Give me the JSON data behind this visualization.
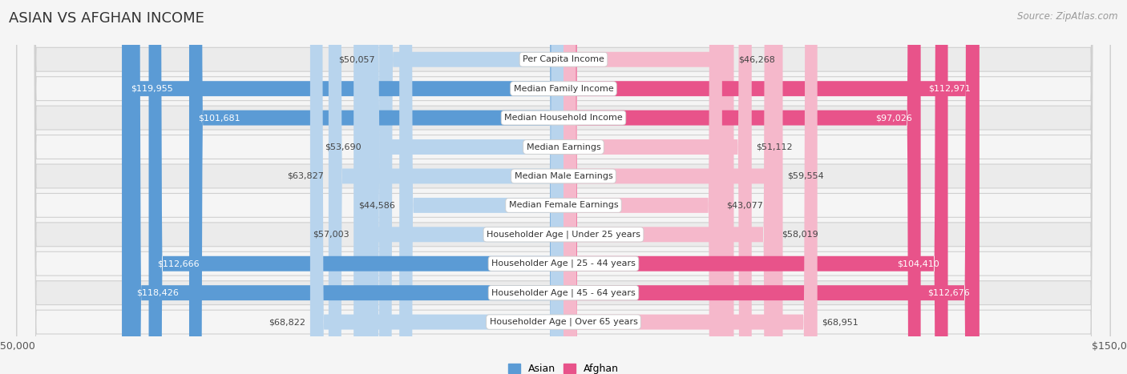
{
  "title": "ASIAN VS AFGHAN INCOME",
  "source": "Source: ZipAtlas.com",
  "categories": [
    "Per Capita Income",
    "Median Family Income",
    "Median Household Income",
    "Median Earnings",
    "Median Male Earnings",
    "Median Female Earnings",
    "Householder Age | Under 25 years",
    "Householder Age | 25 - 44 years",
    "Householder Age | 45 - 64 years",
    "Householder Age | Over 65 years"
  ],
  "asian_values": [
    50057,
    119955,
    101681,
    53690,
    63827,
    44586,
    57003,
    112666,
    118426,
    68822
  ],
  "afghan_values": [
    46268,
    112971,
    97026,
    51112,
    59554,
    43077,
    58019,
    104410,
    112676,
    68951
  ],
  "asian_labels": [
    "$50,057",
    "$119,955",
    "$101,681",
    "$53,690",
    "$63,827",
    "$44,586",
    "$57,003",
    "$112,666",
    "$118,426",
    "$68,822"
  ],
  "afghan_labels": [
    "$46,268",
    "$112,971",
    "$97,026",
    "$51,112",
    "$59,554",
    "$43,077",
    "$58,019",
    "$104,410",
    "$112,676",
    "$68,951"
  ],
  "max_value": 150000,
  "asian_color_light": "#b8d4ed",
  "asian_color_dark": "#5b9bd5",
  "afghan_color_light": "#f5b8cb",
  "afghan_color_dark": "#e8538a",
  "row_bg_even": "#ebebeb",
  "row_bg_odd": "#f5f5f5",
  "row_border_color": "#d0d0d0",
  "fig_bg": "#f5f5f5",
  "title_fontsize": 13,
  "label_fontsize": 8,
  "value_fontsize": 8,
  "legend_fontsize": 9,
  "source_fontsize": 8.5,
  "axis_label_fontsize": 9,
  "large_threshold": 80000
}
